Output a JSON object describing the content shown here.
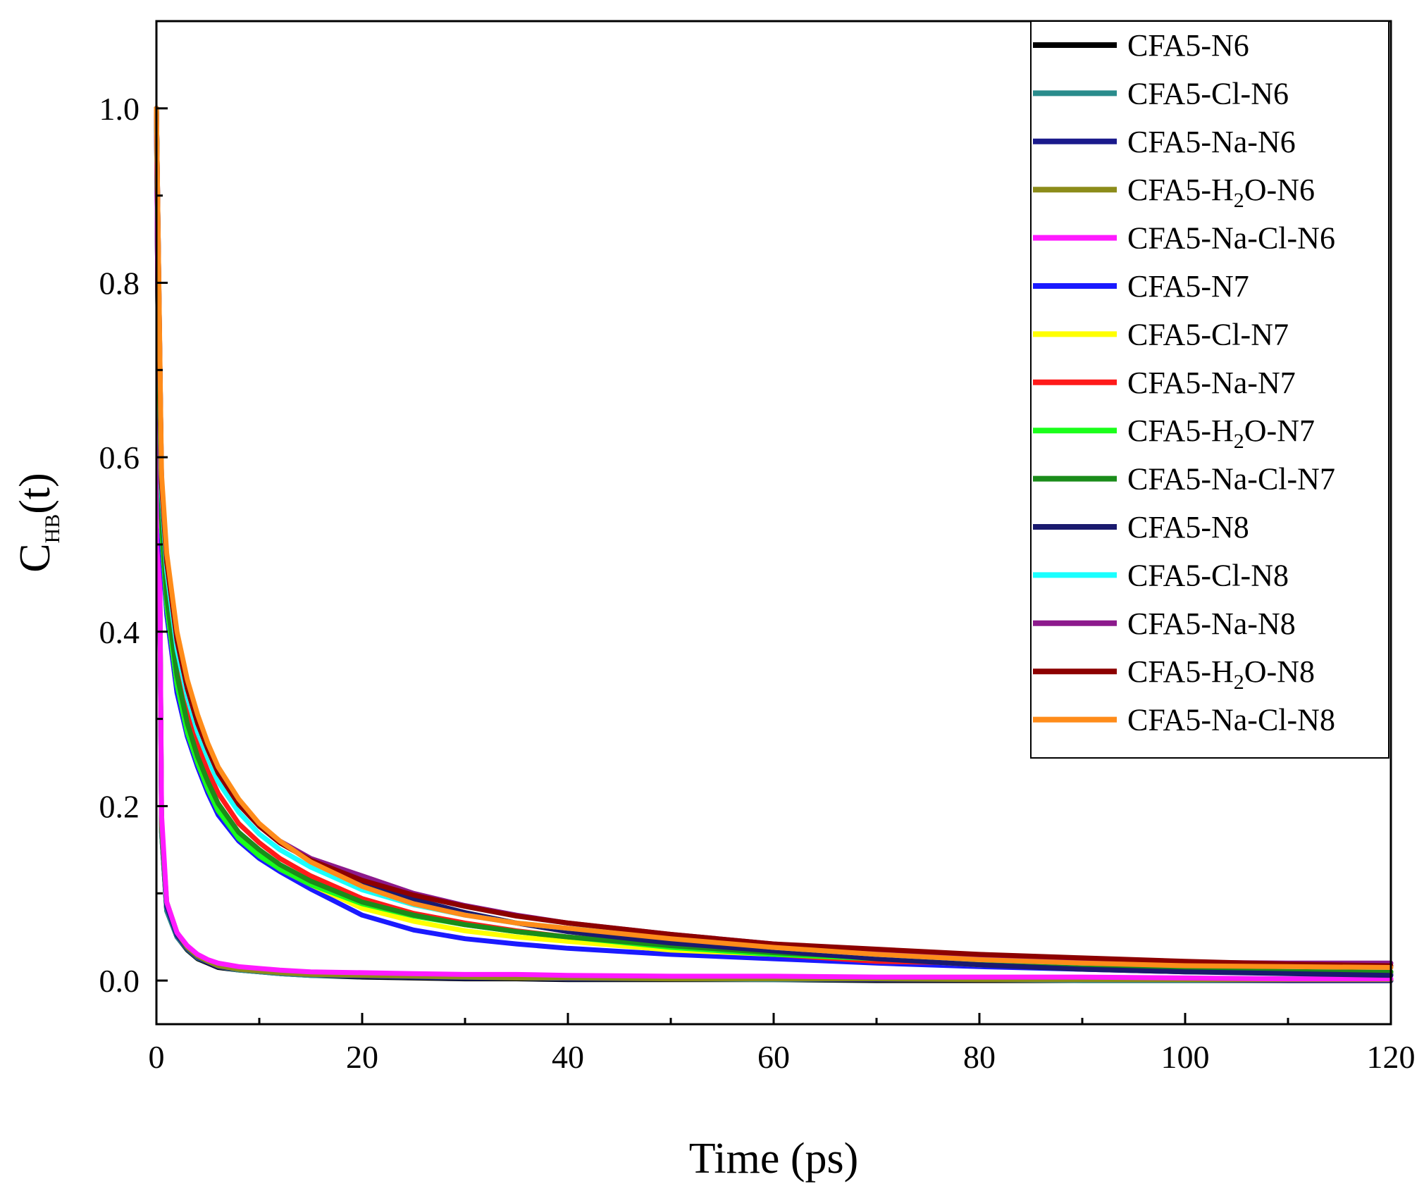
{
  "chart_data": {
    "type": "line",
    "title": "",
    "xlabel": "Time (ps)",
    "ylabel": {
      "main": "C",
      "sub": "HB",
      "suffix": "(t)"
    },
    "xlim": [
      0,
      120
    ],
    "ylim": [
      -0.05,
      1.1
    ],
    "xticks": [
      0,
      20,
      40,
      60,
      80,
      100,
      120
    ],
    "xtick_labels": [
      "0",
      "20",
      "40",
      "60",
      "80",
      "100",
      "120"
    ],
    "yticks": [
      0.0,
      0.2,
      0.4,
      0.6,
      0.8,
      1.0
    ],
    "ytick_labels": [
      "0.0",
      "0.2",
      "0.4",
      "0.6",
      "0.8",
      "1.0"
    ],
    "grid": false,
    "legend_position": "top-right",
    "x": [
      0,
      0.5,
      1,
      2,
      3,
      4,
      5,
      6,
      8,
      10,
      12,
      15,
      20,
      25,
      30,
      35,
      40,
      50,
      60,
      70,
      80,
      90,
      100,
      110,
      120
    ],
    "series": [
      {
        "name": "CFA5-N6",
        "legend_parts": [
          "CFA5-N6"
        ],
        "color": "#000000",
        "values": [
          1.0,
          0.17,
          0.08,
          0.05,
          0.035,
          0.025,
          0.02,
          0.015,
          0.012,
          0.01,
          0.008,
          0.006,
          0.004,
          0.003,
          0.002,
          0.002,
          0.001,
          0.001,
          0.001,
          0.0,
          0.0,
          0.0,
          0.0,
          0.0,
          0.0
        ]
      },
      {
        "name": "CFA5-Cl-N6",
        "legend_parts": [
          "CFA5-Cl-N6"
        ],
        "color": "#2a8c8c",
        "values": [
          1.0,
          0.17,
          0.08,
          0.05,
          0.036,
          0.026,
          0.021,
          0.016,
          0.012,
          0.01,
          0.008,
          0.006,
          0.005,
          0.004,
          0.003,
          0.003,
          0.002,
          0.002,
          0.001,
          0.001,
          0.001,
          0.0,
          0.0,
          0.0,
          0.0
        ]
      },
      {
        "name": "CFA5-Na-N6",
        "legend_parts": [
          "CFA5-Na-N6"
        ],
        "color": "#1a1a8c",
        "values": [
          1.0,
          0.18,
          0.085,
          0.052,
          0.037,
          0.027,
          0.021,
          0.016,
          0.013,
          0.011,
          0.009,
          0.007,
          0.005,
          0.004,
          0.003,
          0.003,
          0.002,
          0.002,
          0.002,
          0.001,
          0.001,
          0.001,
          0.001,
          0.0,
          0.0
        ]
      },
      {
        "name": "CFA5-H2O-N6",
        "legend_parts": [
          "CFA5-H",
          "2",
          "O-N6"
        ],
        "color": "#8c8c1a",
        "values": [
          1.0,
          0.18,
          0.09,
          0.055,
          0.038,
          0.028,
          0.022,
          0.017,
          0.013,
          0.011,
          0.009,
          0.007,
          0.006,
          0.005,
          0.004,
          0.003,
          0.003,
          0.002,
          0.002,
          0.002,
          0.001,
          0.001,
          0.001,
          0.001,
          0.001
        ]
      },
      {
        "name": "CFA5-Na-Cl-N6",
        "legend_parts": [
          "CFA5-Na-Cl-N6"
        ],
        "color": "#ff1aff",
        "values": [
          1.0,
          0.19,
          0.09,
          0.055,
          0.04,
          0.03,
          0.024,
          0.02,
          0.016,
          0.014,
          0.012,
          0.01,
          0.009,
          0.008,
          0.007,
          0.007,
          0.006,
          0.005,
          0.005,
          0.004,
          0.004,
          0.004,
          0.003,
          0.002,
          0.002
        ]
      },
      {
        "name": "CFA5-N7",
        "legend_parts": [
          "CFA5-N7"
        ],
        "color": "#1a1aff",
        "values": [
          1.0,
          0.5,
          0.42,
          0.33,
          0.28,
          0.245,
          0.215,
          0.19,
          0.16,
          0.14,
          0.125,
          0.105,
          0.075,
          0.058,
          0.048,
          0.042,
          0.037,
          0.03,
          0.025,
          0.02,
          0.016,
          0.013,
          0.01,
          0.009,
          0.008
        ]
      },
      {
        "name": "CFA5-Cl-N7",
        "legend_parts": [
          "CFA5-Cl-N7"
        ],
        "color": "#ffff00",
        "values": [
          1.0,
          0.52,
          0.43,
          0.34,
          0.285,
          0.25,
          0.22,
          0.195,
          0.165,
          0.145,
          0.128,
          0.11,
          0.083,
          0.068,
          0.057,
          0.05,
          0.045,
          0.035,
          0.03,
          0.025,
          0.018,
          0.015,
          0.012,
          0.01,
          0.009
        ]
      },
      {
        "name": "CFA5-Na-N7",
        "legend_parts": [
          "CFA5-Na-N7"
        ],
        "color": "#ff1a1a",
        "values": [
          1.0,
          0.55,
          0.46,
          0.37,
          0.31,
          0.27,
          0.24,
          0.215,
          0.18,
          0.158,
          0.14,
          0.12,
          0.094,
          0.077,
          0.066,
          0.057,
          0.05,
          0.04,
          0.03,
          0.022,
          0.02,
          0.015,
          0.012,
          0.01,
          0.01
        ]
      },
      {
        "name": "CFA5-H2O-N7",
        "legend_parts": [
          "CFA5-H",
          "2",
          "O-N7"
        ],
        "color": "#1aff1a",
        "values": [
          1.0,
          0.52,
          0.43,
          0.34,
          0.285,
          0.25,
          0.22,
          0.195,
          0.163,
          0.143,
          0.128,
          0.11,
          0.088,
          0.074,
          0.064,
          0.056,
          0.05,
          0.038,
          0.03,
          0.025,
          0.02,
          0.016,
          0.013,
          0.011,
          0.01
        ]
      },
      {
        "name": "CFA5-Na-Cl-N7",
        "legend_parts": [
          "CFA5-Na-Cl-N7"
        ],
        "color": "#1a8c1a",
        "values": [
          1.0,
          0.53,
          0.44,
          0.35,
          0.295,
          0.257,
          0.228,
          0.203,
          0.17,
          0.15,
          0.133,
          0.114,
          0.09,
          0.075,
          0.064,
          0.056,
          0.05,
          0.04,
          0.032,
          0.026,
          0.02,
          0.016,
          0.013,
          0.011,
          0.01
        ]
      },
      {
        "name": "CFA5-N8",
        "legend_parts": [
          "CFA5-N8"
        ],
        "color": "#1a1a6e",
        "values": [
          1.0,
          0.57,
          0.48,
          0.39,
          0.335,
          0.295,
          0.265,
          0.238,
          0.202,
          0.177,
          0.158,
          0.138,
          0.112,
          0.093,
          0.078,
          0.066,
          0.056,
          0.043,
          0.034,
          0.025,
          0.018,
          0.013,
          0.01,
          0.008,
          0.006
        ]
      },
      {
        "name": "CFA5-Cl-N8",
        "legend_parts": [
          "CFA5-Cl-N8"
        ],
        "color": "#1affff",
        "values": [
          1.0,
          0.56,
          0.47,
          0.38,
          0.325,
          0.285,
          0.255,
          0.228,
          0.193,
          0.168,
          0.15,
          0.13,
          0.104,
          0.087,
          0.075,
          0.066,
          0.06,
          0.05,
          0.038,
          0.03,
          0.024,
          0.02,
          0.018,
          0.016,
          0.015
        ]
      },
      {
        "name": "CFA5-Na-N8",
        "legend_parts": [
          "CFA5-Na-N8"
        ],
        "color": "#8c1a8c",
        "values": [
          1.0,
          0.57,
          0.48,
          0.39,
          0.335,
          0.295,
          0.265,
          0.238,
          0.203,
          0.178,
          0.16,
          0.14,
          0.12,
          0.1,
          0.086,
          0.075,
          0.066,
          0.053,
          0.042,
          0.034,
          0.028,
          0.024,
          0.021,
          0.02,
          0.02
        ]
      },
      {
        "name": "CFA5-H2O-N8",
        "legend_parts": [
          "CFA5-H",
          "2",
          "O-N8"
        ],
        "color": "#8c0000",
        "values": [
          1.0,
          0.57,
          0.48,
          0.39,
          0.335,
          0.295,
          0.265,
          0.238,
          0.202,
          0.177,
          0.158,
          0.138,
          0.115,
          0.098,
          0.085,
          0.074,
          0.066,
          0.053,
          0.042,
          0.036,
          0.03,
          0.026,
          0.022,
          0.019,
          0.017
        ]
      },
      {
        "name": "CFA5-Na-Cl-N8",
        "legend_parts": [
          "CFA5-Na-Cl-N8"
        ],
        "color": "#ff8c1a",
        "values": [
          1.0,
          0.58,
          0.49,
          0.4,
          0.345,
          0.305,
          0.272,
          0.245,
          0.208,
          0.18,
          0.16,
          0.136,
          0.108,
          0.088,
          0.075,
          0.066,
          0.06,
          0.048,
          0.038,
          0.03,
          0.024,
          0.02,
          0.017,
          0.016,
          0.015
        ]
      }
    ]
  }
}
